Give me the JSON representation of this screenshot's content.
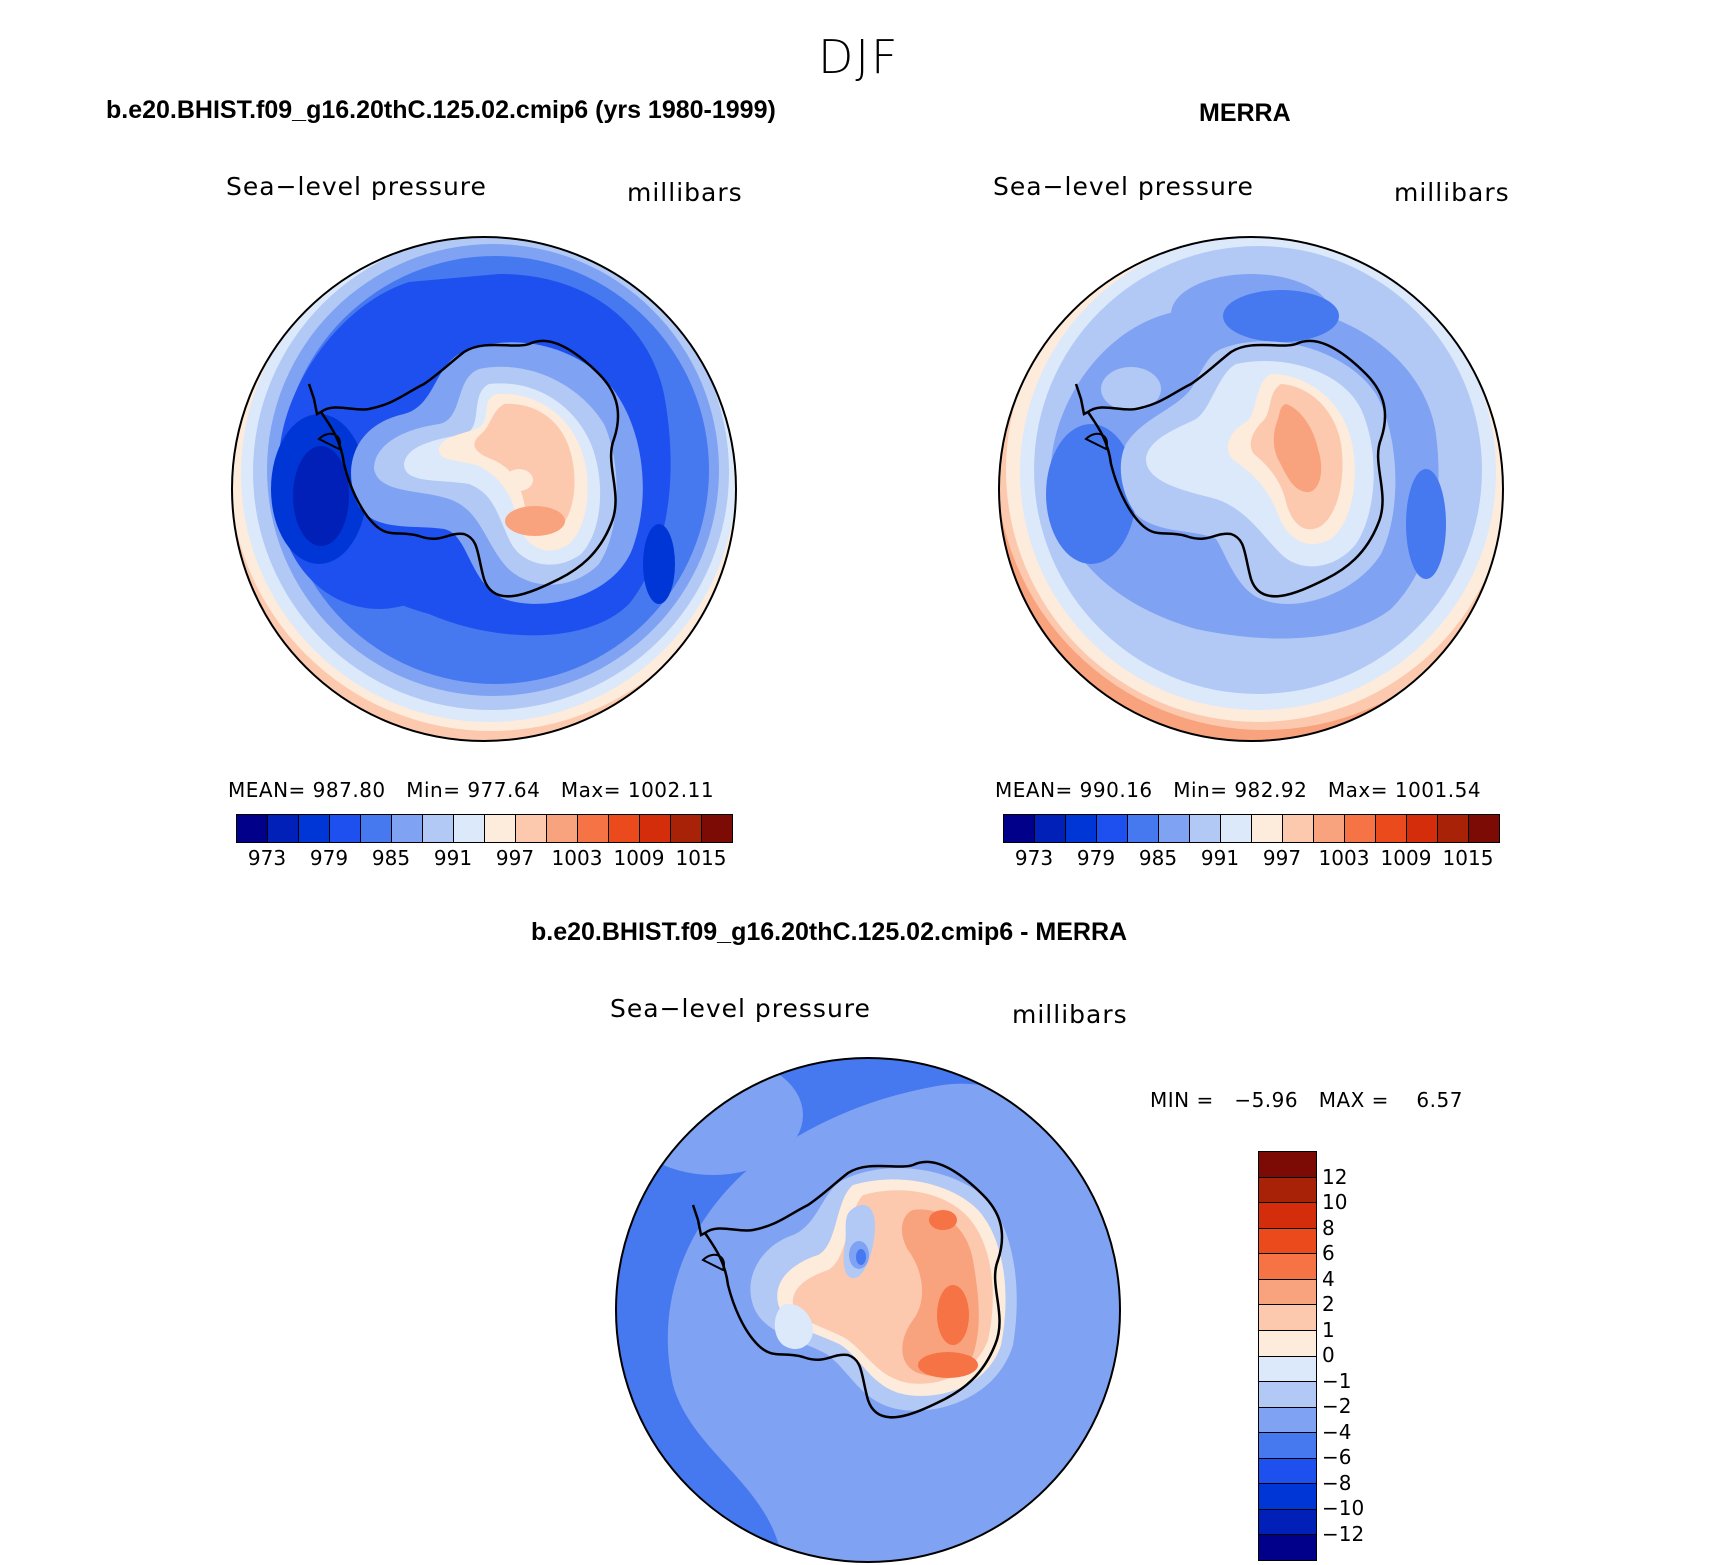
{
  "season": "DJF",
  "panels": {
    "model": {
      "case_title": "b.e20.BHIST.f09_g16.20thC.125.02.cmip6 (yrs 1980-1999)",
      "variable": "Sea−level pressure",
      "units": "millibars",
      "stats": {
        "mean_label": "MEAN=",
        "mean": "987.80",
        "min_label": "Min=",
        "min": "977.64",
        "max_label": "Max=",
        "max": "1002.11"
      }
    },
    "obs": {
      "case_title": "MERRA",
      "variable": "Sea−level pressure",
      "units": "millibars",
      "stats": {
        "mean_label": "MEAN=",
        "mean": "990.16",
        "min_label": "Min=",
        "min": "982.92",
        "max_label": "Max=",
        "max": "1001.54"
      }
    },
    "diff": {
      "case_title": "b.e20.BHIST.f09_g16.20thC.125.02.cmip6 - MERRA",
      "variable": "Sea−level pressure",
      "units": "millibars",
      "stats": {
        "min_label": "MIN =",
        "min": "−5.96",
        "max_label": "MAX =",
        "max": "6.57"
      }
    }
  },
  "colorbars": {
    "abs": {
      "colors": [
        "#00008b",
        "#0020b8",
        "#0036d6",
        "#1e50ef",
        "#4678f0",
        "#7fa2f2",
        "#b2c9f6",
        "#dce9fb",
        "#fdebdc",
        "#fcc9ae",
        "#f9a27e",
        "#f57345",
        "#eb4b1c",
        "#d32d0b",
        "#a82208",
        "#7c0a05"
      ],
      "tick_labels": [
        "973",
        "979",
        "985",
        "991",
        "997",
        "1003",
        "1009",
        "1015"
      ]
    },
    "diff": {
      "colors": [
        "#7c0a05",
        "#a82208",
        "#d32d0b",
        "#eb4b1c",
        "#f57345",
        "#f9a27e",
        "#fcc9ae",
        "#fdebdc",
        "#dce9fb",
        "#b2c9f6",
        "#7fa2f2",
        "#4678f0",
        "#1e50ef",
        "#0036d6",
        "#0020b8",
        "#00008b"
      ],
      "tick_labels": [
        "12",
        "10",
        "8",
        "6",
        "4",
        "2",
        "1",
        "0",
        "−1",
        "−2",
        "−4",
        "−6",
        "−8",
        "−10",
        "−12"
      ]
    }
  }
}
